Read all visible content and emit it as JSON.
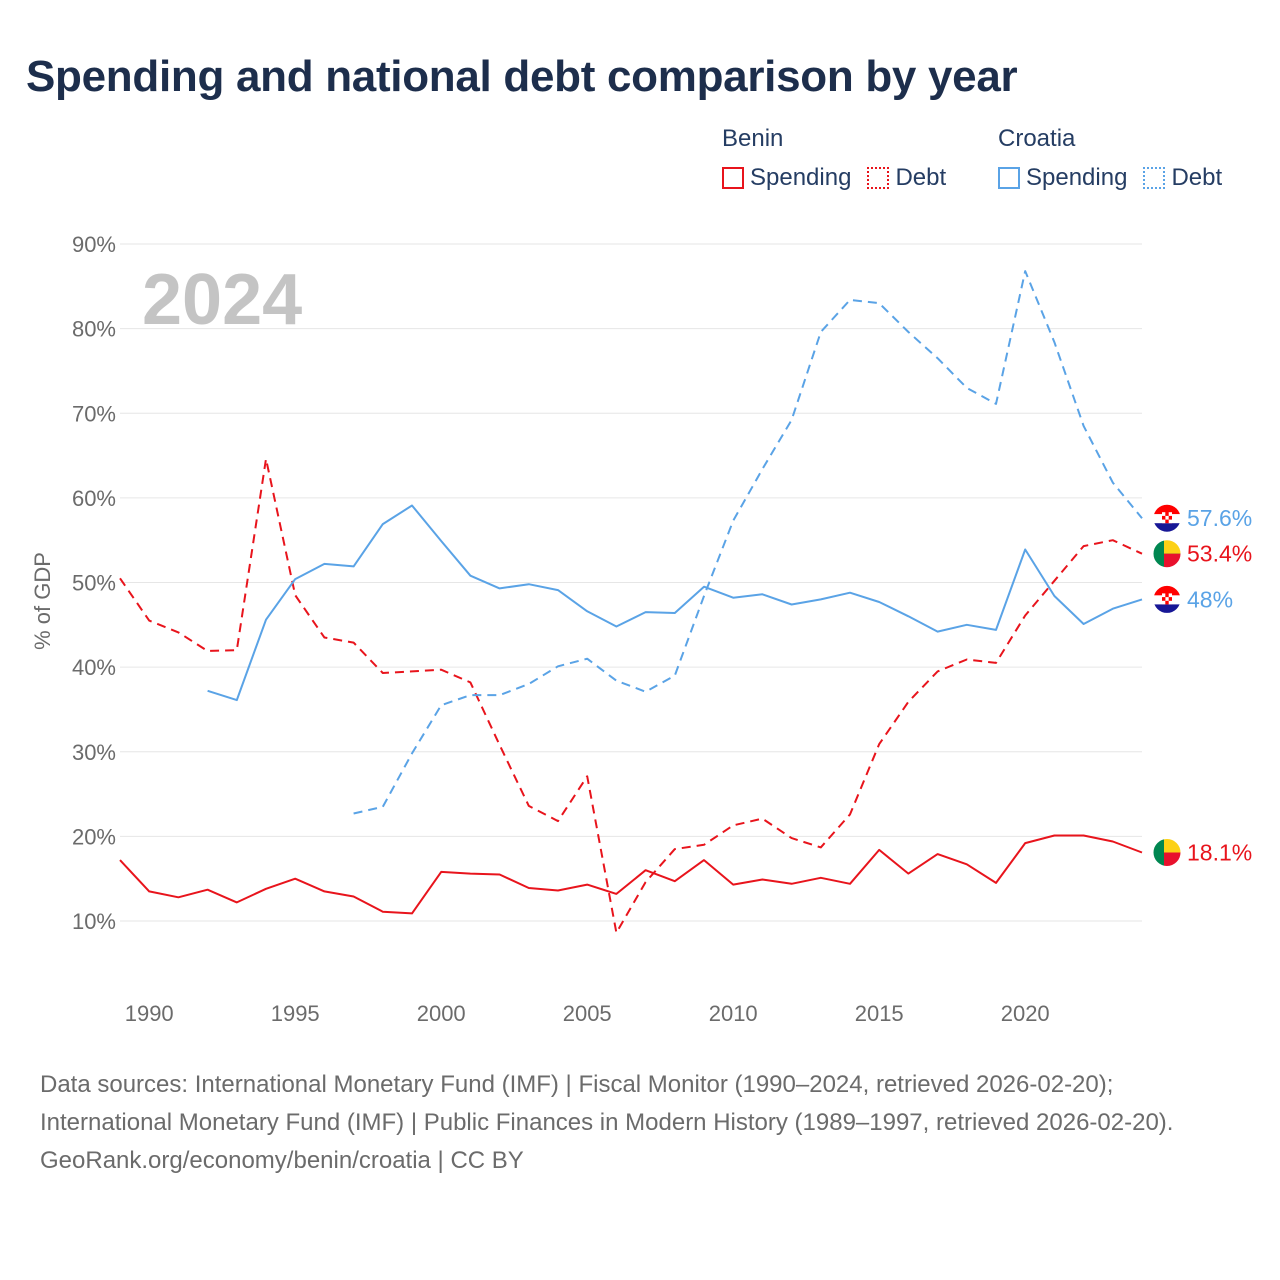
{
  "title": "Spending and national debt comparison by year",
  "legend": {
    "benin": {
      "name": "Benin",
      "spending": "Spending",
      "debt": "Debt"
    },
    "croatia": {
      "name": "Croatia",
      "spending": "Spending",
      "debt": "Debt"
    }
  },
  "colors": {
    "benin": "#e8141c",
    "croatia": "#5aa3e6",
    "grid": "#e6e6e6",
    "axis_text": "#6b6b6b",
    "watermark": "#c4c4c4"
  },
  "chart_data": {
    "type": "line",
    "ylabel": "% of GDP",
    "xlabel": "",
    "ylim": [
      10,
      90
    ],
    "xlim": [
      1989,
      2024
    ],
    "y_ticks": [
      10,
      20,
      30,
      40,
      50,
      60,
      70,
      80,
      90
    ],
    "y_tick_labels": [
      "10%",
      "20%",
      "30%",
      "40%",
      "50%",
      "60%",
      "70%",
      "80%",
      "90%"
    ],
    "x_ticks": [
      1990,
      1995,
      2000,
      2005,
      2010,
      2015,
      2020
    ],
    "x_tick_labels": [
      "1990",
      "1995",
      "2000",
      "2005",
      "2010",
      "2015",
      "2020"
    ],
    "year_watermark": "2024",
    "series": [
      {
        "name": "Benin Spending",
        "country": "benin",
        "style": "solid",
        "x": [
          1989,
          1990,
          1991,
          1992,
          1993,
          1994,
          1995,
          1996,
          1997,
          1998,
          1999,
          2000,
          2001,
          2002,
          2003,
          2004,
          2005,
          2006,
          2007,
          2008,
          2009,
          2010,
          2011,
          2012,
          2013,
          2014,
          2015,
          2016,
          2017,
          2018,
          2019,
          2020,
          2021,
          2022,
          2023,
          2024
        ],
        "values": [
          17.2,
          13.5,
          12.8,
          13.7,
          12.2,
          13.8,
          15.0,
          13.5,
          12.9,
          11.1,
          10.9,
          15.8,
          15.6,
          15.5,
          13.9,
          13.6,
          14.3,
          13.2,
          16.0,
          14.7,
          17.2,
          14.3,
          14.9,
          14.4,
          15.1,
          14.4,
          18.4,
          15.6,
          17.9,
          16.7,
          14.5,
          19.2,
          20.1,
          20.1,
          19.4,
          18.1
        ],
        "end_label": "18.1%"
      },
      {
        "name": "Benin Debt",
        "country": "benin",
        "style": "dashed",
        "x": [
          1989,
          1990,
          1991,
          1992,
          1993,
          1994,
          1995,
          1996,
          1997,
          1998,
          1999,
          2000,
          2001,
          2002,
          2003,
          2004,
          2005,
          2006,
          2007,
          2008,
          2009,
          2010,
          2011,
          2012,
          2013,
          2014,
          2015,
          2016,
          2017,
          2018,
          2019,
          2020,
          2021,
          2022,
          2023,
          2024
        ],
        "values": [
          50.5,
          45.5,
          44.1,
          41.9,
          42.0,
          64.6,
          48.5,
          43.5,
          42.9,
          39.3,
          39.5,
          39.7,
          38.2,
          30.8,
          23.6,
          21.8,
          27.1,
          8.6,
          14.6,
          18.5,
          19.0,
          21.3,
          22.1,
          19.8,
          18.7,
          22.6,
          30.9,
          35.9,
          39.5,
          40.9,
          40.5,
          46.1,
          50.2,
          54.3,
          55.0,
          53.4
        ],
        "end_label": "53.4%"
      },
      {
        "name": "Croatia Spending",
        "country": "croatia",
        "style": "solid",
        "x": [
          1992,
          1993,
          1994,
          1995,
          1996,
          1997,
          1998,
          1999,
          2000,
          2001,
          2002,
          2003,
          2004,
          2005,
          2006,
          2007,
          2008,
          2009,
          2010,
          2011,
          2012,
          2013,
          2014,
          2015,
          2016,
          2017,
          2018,
          2019,
          2020,
          2021,
          2022,
          2023,
          2024
        ],
        "values": [
          37.2,
          36.1,
          45.6,
          50.4,
          52.2,
          51.9,
          56.9,
          59.1,
          54.9,
          50.8,
          49.3,
          49.8,
          49.1,
          46.6,
          44.8,
          46.5,
          46.4,
          49.5,
          48.2,
          48.6,
          47.4,
          48.0,
          48.8,
          47.7,
          46.0,
          44.2,
          45.0,
          44.4,
          53.9,
          48.4,
          45.1,
          46.9,
          48.0
        ],
        "end_label": "48%"
      },
      {
        "name": "Croatia Debt",
        "country": "croatia",
        "style": "dashed",
        "x": [
          1997,
          1998,
          1999,
          2000,
          2001,
          2002,
          2003,
          2004,
          2005,
          2006,
          2007,
          2008,
          2009,
          2010,
          2011,
          2012,
          2013,
          2014,
          2015,
          2016,
          2017,
          2018,
          2019,
          2020,
          2021,
          2022,
          2023,
          2024
        ],
        "values": [
          22.7,
          23.5,
          29.8,
          35.5,
          36.7,
          36.7,
          38.0,
          40.1,
          41.0,
          38.4,
          37.1,
          39.0,
          48.4,
          57.3,
          63.4,
          69.2,
          79.6,
          83.4,
          83.0,
          79.6,
          76.5,
          73.0,
          71.1,
          86.8,
          78.4,
          68.5,
          61.8,
          57.6
        ],
        "end_label": "57.6%"
      }
    ]
  },
  "footer": {
    "sources": "Data sources: International Monetary Fund (IMF) | Fiscal Monitor (1990–2024, retrieved 2026-02-20); International Monetary Fund (IMF) | Public Finances in Modern History (1989–1997, retrieved 2026-02-20).",
    "credit": "GeoRank.org/economy/benin/croatia | CC BY"
  }
}
